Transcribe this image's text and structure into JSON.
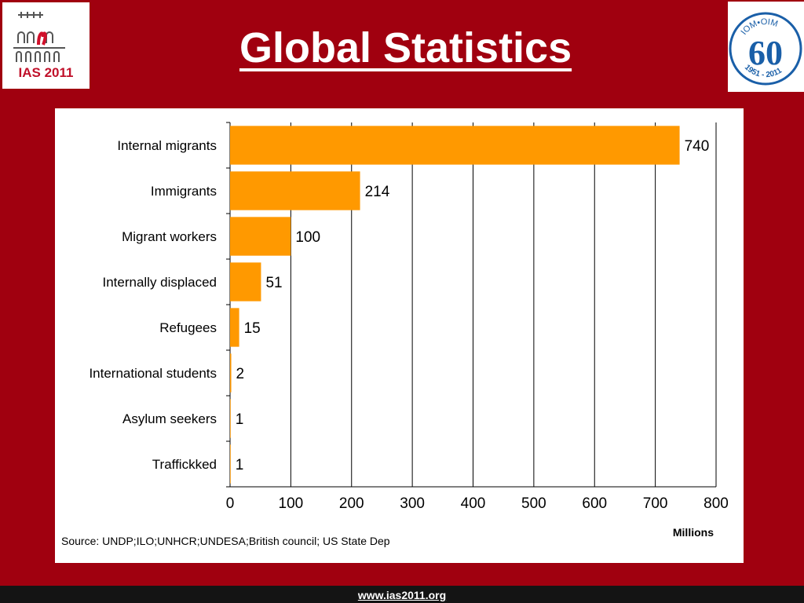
{
  "header": {
    "title": "Global Statistics",
    "logo_left_text": "IAS 2011",
    "logo_right_top": "IOM•OIM",
    "logo_right_number": "60",
    "logo_right_bottom": "1951 - 2011"
  },
  "footer": {
    "url": "www.ias2011.org"
  },
  "colors": {
    "background": "#a0000f",
    "bar": "#ff9900",
    "panel": "#ffffff"
  },
  "chart_data": {
    "type": "bar",
    "orientation": "horizontal",
    "categories": [
      "Internal migrants",
      "Immigrants",
      "Migrant workers",
      "Internally displaced",
      "Refugees",
      "International students",
      "Asylum seekers",
      "Traffickked"
    ],
    "values": [
      740,
      214,
      100,
      51,
      15,
      2,
      1,
      1
    ],
    "data_labels": [
      "740",
      "214",
      "100",
      "51",
      "15",
      "2",
      "1",
      "1"
    ],
    "xlabel": "Millions",
    "xlim": [
      0,
      800
    ],
    "xticks": [
      0,
      100,
      200,
      300,
      400,
      500,
      600,
      700,
      800
    ],
    "grid": "vertical",
    "source": "Source: UNDP;ILO;UNHCR;UNDESA;British council; US State Dep"
  }
}
